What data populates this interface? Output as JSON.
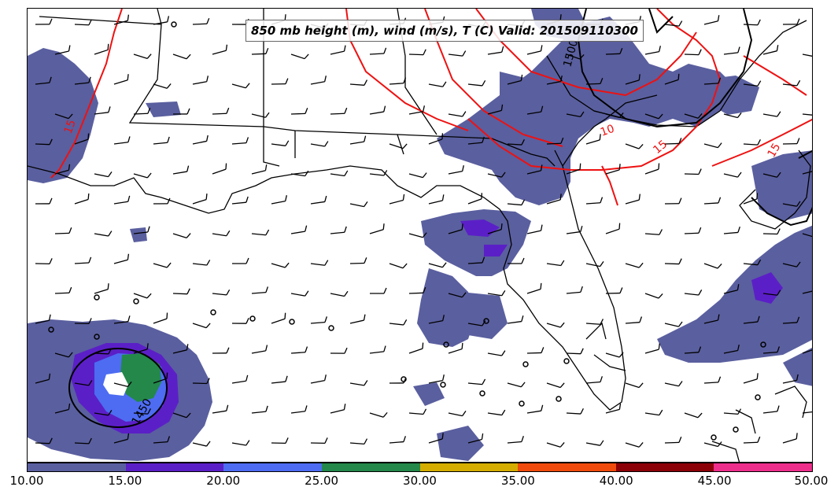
{
  "title": "850 mb height (m), wind (m/s), T (C) Valid: 201509110300",
  "contour_labels": {
    "temp_15_west": "15",
    "temp_15_east": "15",
    "temp_15_far_east": "15",
    "temp_10": "10",
    "height_1500": "1500",
    "height_1450": "1450"
  },
  "colorbar": {
    "ticks": [
      "10.00",
      "15.00",
      "20.00",
      "25.00",
      "30.00",
      "35.00",
      "40.00",
      "45.00",
      "50.00"
    ],
    "colors": [
      "#5a5f9f",
      "#5b1fc7",
      "#4d6cf2",
      "#23884a",
      "#d4ad00",
      "#f04a0c",
      "#8c0008",
      "#ee2e8b"
    ]
  },
  "colors": {
    "temp_contour": "#ee1111",
    "height_contour": "#000000",
    "wind_barb": "#000000",
    "coast": "#000000"
  }
}
